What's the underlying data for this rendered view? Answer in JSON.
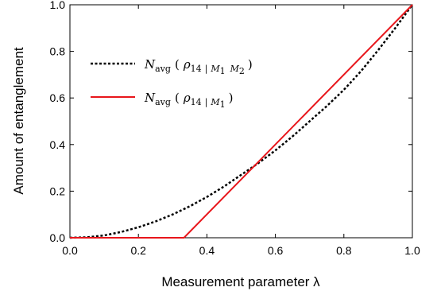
{
  "chart_data": {
    "type": "line",
    "xlabel": "Measurement   parameter   λ",
    "ylabel": "Amount   of   entanglement",
    "xlim": [
      0.0,
      1.0
    ],
    "ylim": [
      0.0,
      1.0
    ],
    "xticks": [
      "0.0",
      "0.2",
      "0.4",
      "0.6",
      "0.8",
      "1.0"
    ],
    "yticks": [
      "0.0",
      "0.2",
      "0.4",
      "0.6",
      "0.8",
      "1.0"
    ],
    "grid": false,
    "legend_position": "top-left",
    "series": [
      {
        "name": "N_avg ( ρ14 | M1 M2 )",
        "style": "dotted",
        "color": "#000000",
        "x": [
          0.0,
          0.05,
          0.1,
          0.15,
          0.2,
          0.25,
          0.3,
          0.35,
          0.4,
          0.45,
          0.5,
          0.55,
          0.6,
          0.65,
          0.7,
          0.75,
          0.8,
          0.85,
          0.9,
          0.95,
          1.0
        ],
        "y": [
          0.0,
          0.002,
          0.01,
          0.025,
          0.045,
          0.07,
          0.1,
          0.135,
          0.175,
          0.22,
          0.27,
          0.32,
          0.375,
          0.435,
          0.5,
          0.565,
          0.635,
          0.715,
          0.805,
          0.9,
          1.0
        ]
      },
      {
        "name": "N_avg ( ρ14 | M1 )",
        "style": "solid",
        "color": "#e8161b",
        "x": [
          0.0,
          0.333,
          1.0
        ],
        "y": [
          0.0,
          0.0,
          1.0
        ]
      }
    ]
  },
  "legend": [
    {
      "prefix": "N",
      "sub": "avg",
      "rho": "ρ",
      "rho_sub": "14",
      "bar": "|",
      "m1": "M",
      "m1_sub": "1",
      "m2": "M",
      "m2_sub": "2",
      "open": "(",
      "close": ")"
    },
    {
      "prefix": "N",
      "sub": "avg",
      "rho": "ρ",
      "rho_sub": "14",
      "bar": "|",
      "m1": "M",
      "m1_sub": "1",
      "open": "(",
      "close": ")"
    }
  ]
}
